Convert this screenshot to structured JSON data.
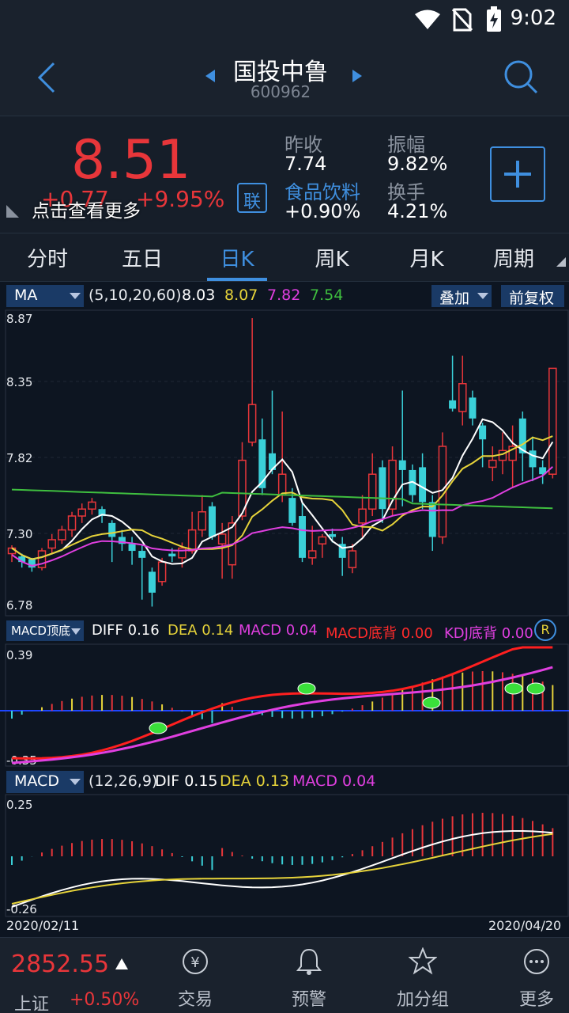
{
  "status": {
    "time": "9:02"
  },
  "header": {
    "stock_name": "国投中鲁",
    "stock_code": "600962"
  },
  "quote": {
    "price": "8.51",
    "change": "+0.77",
    "change_pct": "+9.95%",
    "overlay_hint": "点击查看更多",
    "link_badge": "联",
    "prev_close_label": "昨收",
    "prev_close": "7.74",
    "sector_label": "食品饮料",
    "sector_change": "+0.90%",
    "amplitude_label": "振幅",
    "amplitude": "9.82%",
    "turnover_label": "换手",
    "turnover": "4.21%",
    "colors": {
      "up": "#e8363a",
      "down": "#3ad0d8",
      "accent": "#3f8fdf"
    }
  },
  "tabs": [
    {
      "label": "分时"
    },
    {
      "label": "五日"
    },
    {
      "label": "日K",
      "active": true
    },
    {
      "label": "周K"
    },
    {
      "label": "月K"
    },
    {
      "label": "周期"
    }
  ],
  "ma_bar": {
    "selector": "MA",
    "params": "(5,10,20,60)",
    "ma5": "8.03",
    "ma10": "8.07",
    "ma20": "7.82",
    "ma60": "7.54",
    "overlay_button": "叠加",
    "adjust_button": "前复权"
  },
  "price_axis": [
    "8.87",
    "8.35",
    "7.82",
    "7.30",
    "6.78"
  ],
  "signal_bar": {
    "selector": "MACD顶底",
    "diff_label": "DIFF",
    "diff": "0.16",
    "dea_label": "DEA",
    "dea": "0.14",
    "macd_label": "MACD",
    "macd": "0.04",
    "macd_div_label": "MACD底背",
    "macd_div": "0.00",
    "kdj_div_label": "KDJ底背",
    "kdj_div": "0.00",
    "r_badge": "R",
    "axis": [
      "0.39",
      "-0.35"
    ]
  },
  "macd_bar": {
    "selector": "MACD",
    "params": "(12,26,9)",
    "dif_label": "DIF",
    "dif": "0.15",
    "dea_label": "DEA",
    "dea": "0.13",
    "macd_label": "MACD",
    "macd": "0.04",
    "axis": [
      "0.25",
      "-0.26"
    ]
  },
  "date_range": {
    "start": "2020/02/11",
    "end": "2020/04/20"
  },
  "bottom": {
    "index_value": "2852.55",
    "index_name": "上证",
    "index_change": "+0.50%",
    "items": [
      {
        "label": "交易",
        "icon": "yen-exchange-icon"
      },
      {
        "label": "预警",
        "icon": "bell-icon"
      },
      {
        "label": "加分组",
        "icon": "star-icon"
      },
      {
        "label": "更多",
        "icon": "more-icon"
      }
    ]
  }
}
